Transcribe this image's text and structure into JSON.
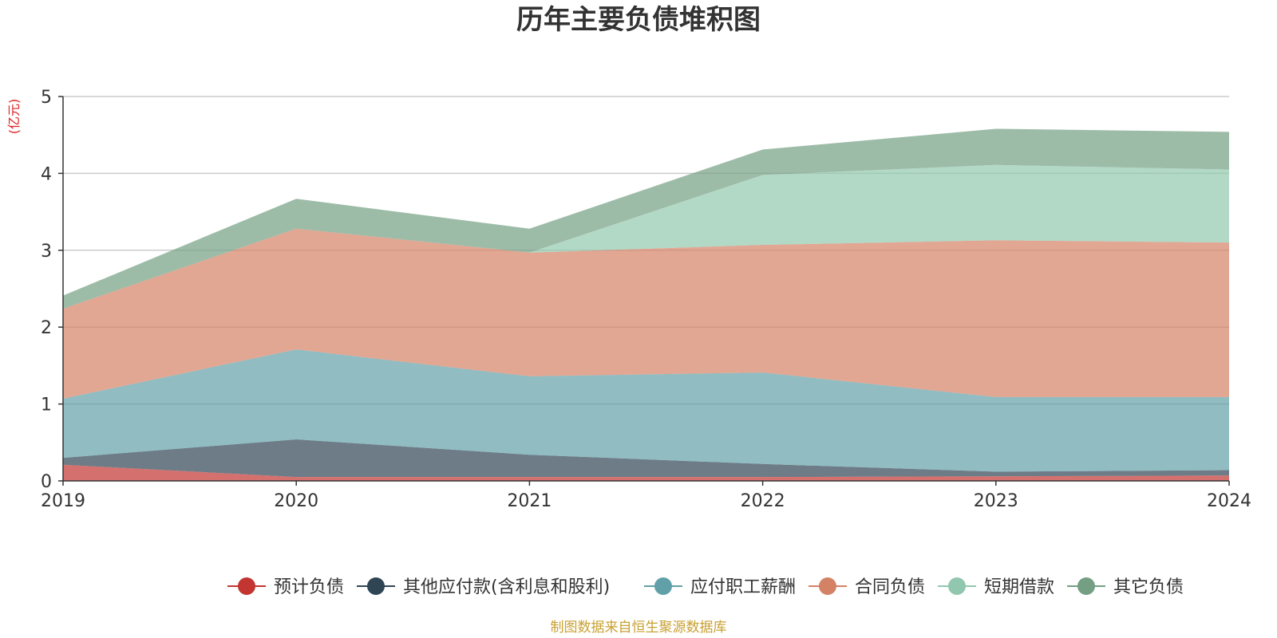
{
  "chart_data": {
    "type": "area",
    "stacked": true,
    "title": "历年主要负债堆积图",
    "y_unit": "(亿元)",
    "x": [
      "2019",
      "2020",
      "2021",
      "2022",
      "2023",
      "2024"
    ],
    "ylim": [
      0,
      5
    ],
    "yticks": [
      "0",
      "1",
      "2",
      "3",
      "4",
      "5"
    ],
    "grid": true,
    "legend_position": "bottom",
    "series": [
      {
        "name": "预计负债",
        "color": "#c23531",
        "values": [
          0.21,
          0.05,
          0.05,
          0.05,
          0.06,
          0.07
        ]
      },
      {
        "name": "其他应付款(含利息和股利)",
        "color": "#2f4554",
        "values": [
          0.09,
          0.49,
          0.29,
          0.17,
          0.06,
          0.07
        ]
      },
      {
        "name": "应付职工薪酬",
        "color": "#61a0a8",
        "values": [
          0.77,
          1.17,
          1.02,
          1.19,
          0.97,
          0.95
        ]
      },
      {
        "name": "合同负债",
        "color": "#d48265",
        "values": [
          1.17,
          1.57,
          1.61,
          1.66,
          2.04,
          2.01
        ]
      },
      {
        "name": "短期借款",
        "color": "#91c7ae",
        "values": [
          0.0,
          0.0,
          0.0,
          0.91,
          0.98,
          0.95
        ]
      },
      {
        "name": "其它负债",
        "color": "#749f83",
        "values": [
          0.17,
          0.39,
          0.31,
          0.33,
          0.47,
          0.49
        ]
      }
    ]
  },
  "footer": "制图数据来自恒生聚源数据库"
}
